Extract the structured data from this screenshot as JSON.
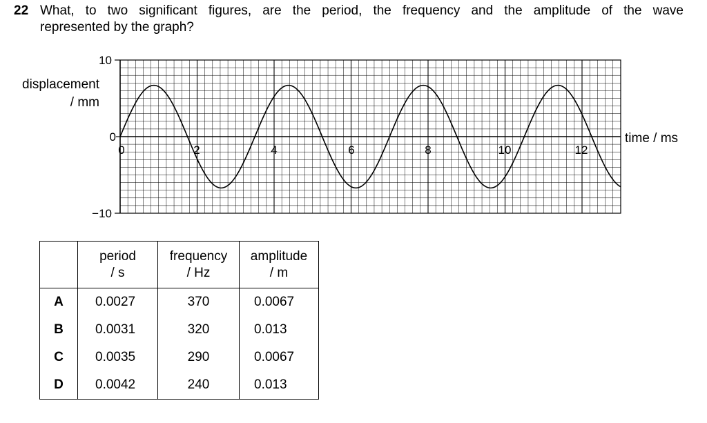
{
  "question": {
    "number": "22",
    "line1": "What, to two significant figures, are the period, the frequency and the amplitude of the wave",
    "line2": "represented by the graph?"
  },
  "graph": {
    "ylabel_line1": "displacement",
    "ylabel_line2": "/ mm",
    "xlabel": "time / ms",
    "yticks": [
      "10",
      "0",
      "−10"
    ],
    "xticks": [
      "0",
      "2",
      "4",
      "6",
      "8",
      "10",
      "12"
    ]
  },
  "chart_data": {
    "type": "line",
    "xlabel": "time / ms",
    "ylabel": "displacement / mm",
    "xlim": [
      0,
      13
    ],
    "ylim": [
      -10,
      10
    ],
    "grid": true,
    "series": [
      {
        "function": "sine",
        "amplitude": 6.7,
        "period": 3.5,
        "x_start": 0,
        "x_end": 13,
        "y0": 0
      }
    ]
  },
  "table": {
    "headers": [
      {
        "line1": "",
        "line2": ""
      },
      {
        "line1": "period",
        "line2": "/ s"
      },
      {
        "line1": "frequency",
        "line2": "/ Hz"
      },
      {
        "line1": "amplitude",
        "line2": "/ m"
      }
    ],
    "rows": [
      {
        "letter": "A",
        "period": "0.0027",
        "frequency": "370",
        "amplitude": "0.0067"
      },
      {
        "letter": "B",
        "period": "0.0031",
        "frequency": "320",
        "amplitude": "0.013"
      },
      {
        "letter": "C",
        "period": "0.0035",
        "frequency": "290",
        "amplitude": "0.0067"
      },
      {
        "letter": "D",
        "period": "0.0042",
        "frequency": "240",
        "amplitude": "0.013"
      }
    ]
  }
}
